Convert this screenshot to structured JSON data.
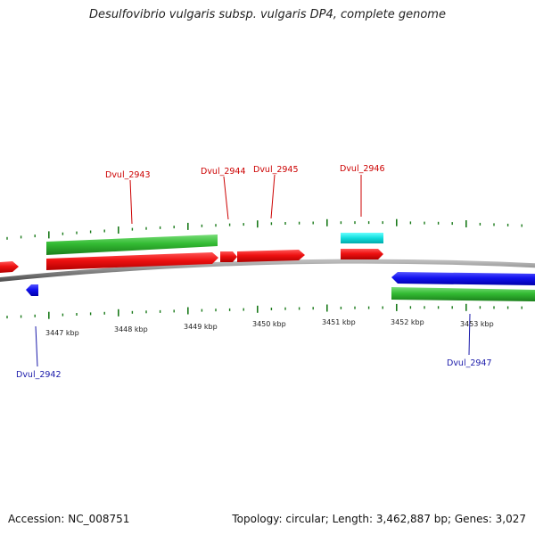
{
  "title": "Desulfovibrio vulgaris subsp. vulgaris DP4, complete genome",
  "footer": {
    "accession": "Accession: NC_008751",
    "stats": "Topology: circular; Length: 3,462,887 bp; Genes: 3,027"
  },
  "scale_labels": [
    "3447 kbp",
    "3448 kbp",
    "3449 kbp",
    "3450 kbp",
    "3451 kbp",
    "3452 kbp",
    "3453 kbp"
  ],
  "gene_labels": {
    "forward": [
      "Dvul_2943",
      "Dvul_2944",
      "Dvul_2945",
      "Dvul_2946"
    ],
    "reverse": [
      "Dvul_2942",
      "Dvul_2947"
    ]
  },
  "colors": {
    "forward_cds": "#ee1111",
    "reverse_cds": "#1111ee",
    "forward_gene": "#33bb33",
    "reverse_gene": "#33bb33",
    "rna": "#11dddd",
    "backbone": "#888888",
    "tick": "#1a7a1a",
    "forward_label": "#cc0000",
    "reverse_label": "#1a1aaa"
  }
}
